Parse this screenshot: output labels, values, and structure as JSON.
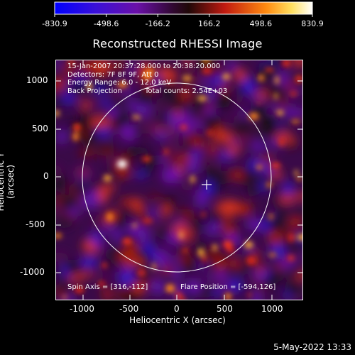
{
  "colorbar": {
    "tick_labels": [
      "-830.9",
      "-498.6",
      "-166.2",
      "166.2",
      "498.6",
      "830.9"
    ]
  },
  "title": "Reconstructed RHESSI Image",
  "info": {
    "time_range": "15-Jan-2007 20:37:28.000 to 20:38:20.000",
    "detectors": "Detectors: 7F 8F 9F, Att 0",
    "energy": "Energy Range: 6.0 - 12.0 keV",
    "method": "Back Projection",
    "counts": "Total counts: 2.54E+03",
    "spin_axis": "Spin Axis = [316,-112]",
    "flare_position": "Flare Position = [-594,126]"
  },
  "axes": {
    "xlabel": "Heliocentric X (arcsec)",
    "ylabel": "Heliocentric Y (arcsec)",
    "x_ticks": [
      "-1000",
      "-500",
      "0",
      "500",
      "1000"
    ],
    "y_ticks": [
      "1000",
      "500",
      "0",
      "-500",
      "-1000"
    ]
  },
  "footer": {
    "date": "5-May-2022 13:33"
  },
  "colors": {
    "background": "#000000",
    "colormap": [
      "#0000ff",
      "#5a0aa0",
      "#3a0a5a",
      "#000000",
      "#8a1a10",
      "#e02a10",
      "#ff9a20",
      "#ffffff"
    ]
  }
}
